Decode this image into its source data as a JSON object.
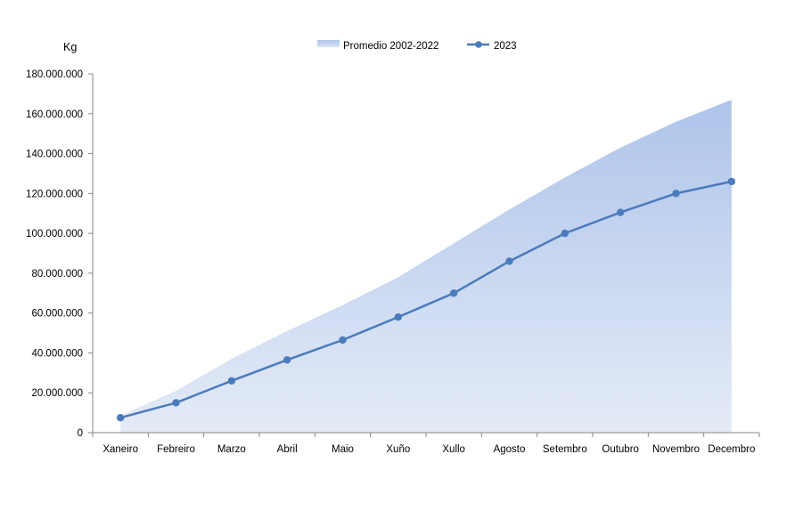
{
  "chart_data": {
    "type": "area",
    "ylabel": "Kg",
    "ylim": [
      0,
      180000000
    ],
    "yticks": [
      0,
      20000000,
      40000000,
      60000000,
      80000000,
      100000000,
      120000000,
      140000000,
      160000000,
      180000000
    ],
    "ytick_labels": [
      "0",
      "20.000.000",
      "40.000.000",
      "60.000.000",
      "80.000.000",
      "100.000.000",
      "120.000.000",
      "140.000.000",
      "160.000.000",
      "180.000.000"
    ],
    "categories": [
      "Xaneiro",
      "Febreiro",
      "Marzo",
      "Abril",
      "Maio",
      "Xuño",
      "Xullo",
      "Agosto",
      "Setembro",
      "Outubro",
      "Novembro",
      "Decembro"
    ],
    "grid": false,
    "legend_position": "top-center",
    "series": [
      {
        "name": "Promedio 2002-2022",
        "kind": "area",
        "color": "#9db6e3",
        "values": [
          8500000,
          21000000,
          37000000,
          51000000,
          64000000,
          78000000,
          95000000,
          112000000,
          128000000,
          143000000,
          156000000,
          167000000
        ]
      },
      {
        "name": "2023",
        "kind": "line",
        "color": "#4a7bbd",
        "values": [
          7500000,
          15000000,
          26000000,
          36500000,
          46500000,
          58000000,
          70000000,
          86000000,
          100000000,
          110500000,
          120000000,
          126000000
        ]
      }
    ]
  }
}
